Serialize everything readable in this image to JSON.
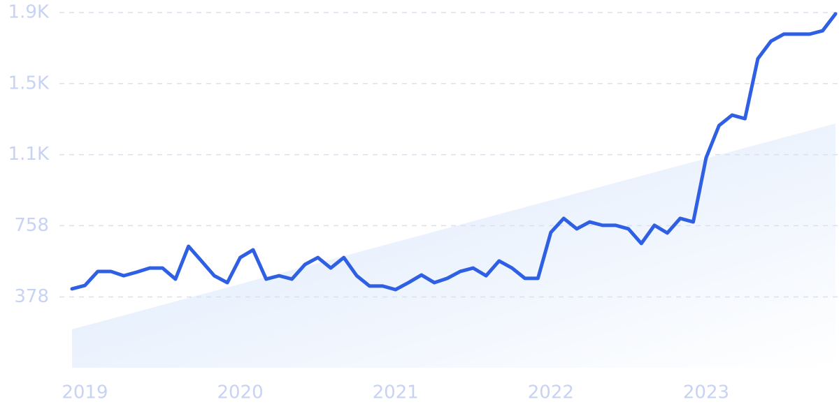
{
  "chart_data": {
    "type": "line",
    "x": [
      2018.917,
      2019,
      2019.083,
      2019.167,
      2019.25,
      2019.333,
      2019.417,
      2019.5,
      2019.583,
      2019.667,
      2019.75,
      2019.833,
      2019.917,
      2020,
      2020.083,
      2020.167,
      2020.25,
      2020.333,
      2020.417,
      2020.5,
      2020.583,
      2020.667,
      2020.75,
      2020.833,
      2020.917,
      2021,
      2021.083,
      2021.167,
      2021.25,
      2021.333,
      2021.417,
      2021.5,
      2021.583,
      2021.667,
      2021.75,
      2021.833,
      2021.917,
      2022,
      2022.083,
      2022.167,
      2022.25,
      2022.333,
      2022.417,
      2022.5,
      2022.583,
      2022.667,
      2022.75,
      2022.833,
      2022.917,
      2023,
      2023.083,
      2023.167,
      2023.25,
      2023.333,
      2023.417,
      2023.5,
      2023.583,
      2023.667,
      2023.75,
      2023.833
    ],
    "series": [
      {
        "color": "#2f5fe3",
        "values": [
          421,
          439,
          514,
          514,
          491,
          510,
          532,
          532,
          473,
          648,
          570,
          491,
          454,
          588,
          629,
          473,
          491,
          473,
          551,
          588,
          532,
          588,
          491,
          436,
          436,
          417,
          454,
          495,
          454,
          477,
          514,
          532,
          491,
          570,
          532,
          477,
          477,
          722,
          797,
          741,
          778,
          760,
          760,
          741,
          663,
          760,
          719,
          797,
          778,
          1121,
          1292,
          1348,
          1329,
          1649,
          1742,
          1780,
          1780,
          1780,
          1798,
          1888
        ]
      }
    ],
    "trend": [
      205,
      1303
    ],
    "xlim": [
      2018.917,
      2023.833
    ],
    "xticks": [
      2019,
      2020,
      2021,
      2022,
      2023
    ],
    "ylim": [
      0,
      1895
    ],
    "yticks": [
      378,
      758,
      {
        "value": 1137,
        "label": "1.1K"
      },
      {
        "value": 1516,
        "label": "1.5K"
      },
      {
        "value": 1895,
        "label": "1.9K"
      }
    ],
    "grid": true
  }
}
